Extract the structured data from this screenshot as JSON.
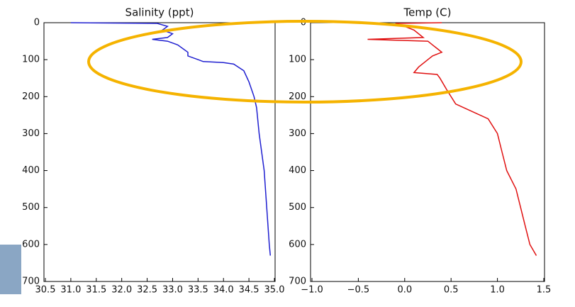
{
  "chart_data": [
    {
      "type": "line",
      "title": "Salinity (ppt)",
      "color": "#1f1fd0",
      "y_inverted": true,
      "x": [
        31.0,
        32.7,
        32.9,
        32.8,
        33.0,
        32.9,
        32.6,
        32.9,
        33.1,
        33.2,
        33.3,
        33.3,
        33.5,
        33.6,
        34.0,
        34.2,
        34.4,
        34.5,
        34.6,
        34.65,
        34.7,
        34.8,
        34.85,
        34.9,
        34.92
      ],
      "y": [
        0,
        2,
        10,
        20,
        30,
        40,
        45,
        50,
        60,
        70,
        80,
        90,
        100,
        105,
        108,
        112,
        130,
        160,
        200,
        230,
        300,
        400,
        500,
        600,
        630
      ],
      "xlim": [
        30.5,
        35.0
      ],
      "xticks": [
        30.5,
        {
          "value": 31,
          "label": "31.0"
        },
        31.5,
        {
          "value": 32,
          "label": "32.0"
        },
        32.5,
        {
          "value": 33,
          "label": "33.0"
        },
        33.5,
        {
          "value": 34,
          "label": "34.0"
        },
        34.5,
        {
          "value": 35,
          "label": "35.0"
        }
      ],
      "ylim": [
        0,
        700
      ],
      "yticks": [
        0,
        100,
        200,
        300,
        400,
        500,
        600,
        700
      ]
    },
    {
      "type": "line",
      "title": "Temp (C)",
      "color": "#e01010",
      "y_inverted": true,
      "x": [
        0.4,
        -0.1,
        0.0,
        0.1,
        0.2,
        -0.4,
        0.25,
        0.3,
        0.35,
        0.4,
        0.3,
        0.25,
        0.15,
        0.1,
        0.35,
        0.38,
        0.45,
        0.55,
        0.9,
        1.0,
        1.05,
        1.1,
        1.2,
        1.25,
        1.3,
        1.35,
        1.42
      ],
      "y": [
        0,
        2,
        10,
        20,
        40,
        45,
        50,
        60,
        70,
        80,
        90,
        100,
        120,
        135,
        140,
        150,
        180,
        220,
        260,
        300,
        350,
        400,
        450,
        500,
        550,
        600,
        630
      ],
      "xlim": [
        -1.0,
        1.5
      ],
      "xticks": [
        {
          "value": -1,
          "label": "−1.0"
        },
        {
          "value": -0.5,
          "label": "−0.5"
        },
        {
          "value": 0,
          "label": "0.0"
        },
        0.5,
        {
          "value": 1,
          "label": "1.0"
        },
        1.5
      ],
      "ylim": [
        0,
        700
      ],
      "yticks": [
        0,
        100,
        200,
        300,
        400,
        500,
        600,
        700
      ]
    }
  ]
}
